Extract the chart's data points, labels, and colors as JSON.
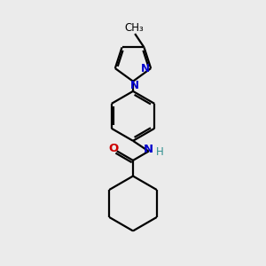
{
  "background_color": "#ebebeb",
  "bond_color": "#000000",
  "N_color": "#0000cc",
  "O_color": "#cc0000",
  "H_color": "#2f8f8f",
  "figsize": [
    3.0,
    3.0
  ],
  "dpi": 100,
  "xlim": [
    0,
    10
  ],
  "ylim": [
    0,
    10
  ]
}
